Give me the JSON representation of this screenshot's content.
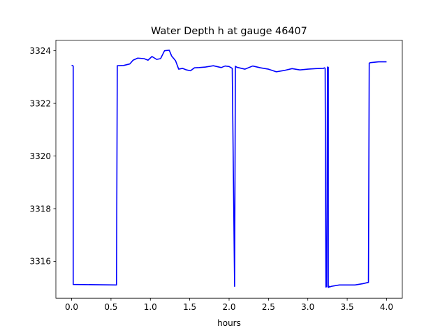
{
  "chart_data": {
    "type": "line",
    "title": "Water Depth h at gauge 46407",
    "xlabel": "hours",
    "ylabel": "",
    "xlim": [
      -0.2,
      4.2
    ],
    "ylim": [
      3314.6,
      3324.4
    ],
    "xticks": [
      0.0,
      0.5,
      1.0,
      1.5,
      2.0,
      2.5,
      3.0,
      3.5,
      4.0
    ],
    "xtick_labels": [
      "0.0",
      "0.5",
      "1.0",
      "1.5",
      "2.0",
      "2.5",
      "3.0",
      "3.5",
      "4.0"
    ],
    "yticks": [
      3316,
      3318,
      3320,
      3322,
      3324
    ],
    "ytick_labels": [
      "3316",
      "3318",
      "3320",
      "3322",
      "3324"
    ],
    "grid": false,
    "series": [
      {
        "color": "#0000ff",
        "x": [
          0.0,
          0.02,
          0.02,
          0.3,
          0.57,
          0.58,
          0.66,
          0.74,
          0.78,
          0.84,
          0.92,
          0.97,
          1.02,
          1.08,
          1.13,
          1.18,
          1.24,
          1.27,
          1.32,
          1.36,
          1.41,
          1.46,
          1.51,
          1.56,
          1.62,
          1.7,
          1.8,
          1.9,
          1.95,
          2.0,
          2.04,
          2.07,
          2.07,
          2.08,
          2.08,
          2.1,
          2.2,
          2.3,
          2.4,
          2.5,
          2.6,
          2.7,
          2.8,
          2.9,
          3.0,
          3.1,
          3.2,
          3.21,
          3.22,
          3.23,
          3.24,
          3.25,
          3.26,
          3.26,
          3.27,
          3.27,
          3.3,
          3.4,
          3.5,
          3.6,
          3.7,
          3.77,
          3.78,
          3.8,
          3.9,
          4.0
        ],
        "y": [
          3323.45,
          3323.42,
          3315.12,
          3315.11,
          3315.1,
          3323.43,
          3323.44,
          3323.5,
          3323.64,
          3323.72,
          3323.7,
          3323.64,
          3323.78,
          3323.67,
          3323.7,
          3324.0,
          3324.02,
          3323.8,
          3323.62,
          3323.3,
          3323.33,
          3323.27,
          3323.24,
          3323.35,
          3323.36,
          3323.38,
          3323.43,
          3323.36,
          3323.42,
          3323.4,
          3323.33,
          3315.05,
          3315.1,
          3323.38,
          3323.41,
          3323.37,
          3323.3,
          3323.42,
          3323.35,
          3323.3,
          3323.2,
          3323.25,
          3323.32,
          3323.27,
          3323.3,
          3323.32,
          3323.33,
          3323.35,
          3323.34,
          3315.02,
          3315.04,
          3323.38,
          3323.37,
          3315.0,
          3315.05,
          3315.02,
          3315.05,
          3315.1,
          3315.1,
          3315.1,
          3315.15,
          3315.2,
          3323.53,
          3323.55,
          3323.58,
          3323.58
        ]
      }
    ]
  }
}
